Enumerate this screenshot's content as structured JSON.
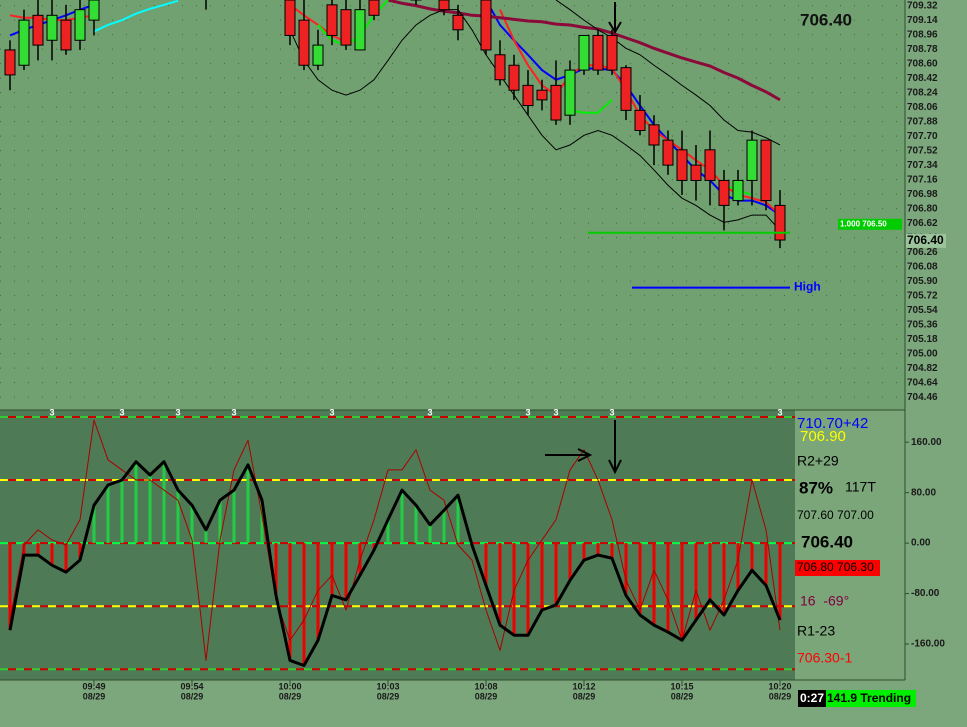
{
  "chart_data": [
    {
      "type": "candlestick",
      "last_price_text": "706.40",
      "current_price": {
        "value": 706.4,
        "label": "706.40"
      },
      "ylim": [
        704.3,
        709.39
      ],
      "yticks": [
        709.32,
        709.14,
        708.96,
        708.78,
        {
          "value": 708.6,
          "label": "708.60"
        },
        708.42,
        708.24,
        708.06,
        707.88,
        {
          "value": 707.7,
          "label": "707.70"
        },
        707.52,
        707.34,
        707.16,
        706.98,
        {
          "value": 706.8,
          "label": "706.80"
        },
        706.62,
        706.44,
        706.26,
        706.08,
        {
          "value": 705.9,
          "label": "705.90"
        },
        705.72,
        705.54,
        705.36,
        705.18,
        {
          "value": 705.0,
          "label": "705.00"
        },
        704.82,
        704.64,
        704.46
      ],
      "grid": true,
      "up_color": "#33dd33",
      "down_color": "#ee2222",
      "open": [
        708.77,
        708.58,
        709.2,
        708.89,
        709.14,
        708.89,
        709.14,
        null,
        null,
        null,
        null,
        null,
        null,
        null,
        709.55,
        null,
        null,
        null,
        null,
        null,
        709.39,
        709.14,
        708.58,
        709.33,
        709.27,
        708.77,
        709.39,
        null,
        null,
        709.45,
        null,
        709.39,
        709.2,
        null,
        709.39,
        708.71,
        708.58,
        708.33,
        708.27,
        708.33,
        707.96,
        708.52,
        708.95,
        708.95,
        708.55,
        708.02,
        707.84,
        707.65,
        707.53,
        707.34,
        707.53,
        707.15,
        706.9,
        707.15,
        707.65,
        706.84
      ],
      "high": [
        708.89,
        709.27,
        709.39,
        709.39,
        709.33,
        709.39,
        709.51,
        null,
        null,
        null,
        null,
        null,
        null,
        null,
        709.65,
        null,
        null,
        null,
        null,
        null,
        709.51,
        709.39,
        709.02,
        709.45,
        709.39,
        709.39,
        709.51,
        null,
        null,
        709.51,
        null,
        709.51,
        709.33,
        null,
        709.45,
        708.89,
        708.71,
        708.52,
        708.4,
        708.64,
        708.64,
        708.95,
        709.02,
        709.02,
        708.58,
        708.21,
        707.96,
        707.77,
        707.77,
        707.59,
        707.77,
        707.28,
        707.28,
        707.77,
        707.65,
        707.03
      ],
      "low": [
        708.27,
        708.52,
        708.64,
        708.64,
        708.71,
        708.77,
        708.95,
        null,
        null,
        null,
        null,
        null,
        null,
        null,
        709.27,
        null,
        null,
        null,
        null,
        null,
        708.83,
        708.52,
        708.52,
        708.83,
        708.77,
        708.77,
        709.14,
        null,
        null,
        709.33,
        null,
        709.2,
        708.89,
        null,
        708.71,
        708.33,
        708.15,
        707.96,
        708.02,
        707.84,
        707.84,
        708.46,
        708.46,
        708.46,
        707.9,
        707.71,
        707.34,
        707.22,
        706.97,
        706.9,
        706.84,
        706.53,
        706.84,
        706.84,
        706.78,
        706.31
      ],
      "close": [
        708.46,
        709.14,
        708.83,
        709.2,
        708.77,
        709.27,
        709.39,
        null,
        null,
        null,
        null,
        null,
        null,
        null,
        709.45,
        null,
        null,
        null,
        null,
        null,
        708.95,
        708.58,
        708.83,
        708.95,
        708.83,
        709.27,
        709.2,
        null,
        null,
        709.39,
        null,
        709.27,
        709.02,
        null,
        708.77,
        708.4,
        708.27,
        708.08,
        708.15,
        707.9,
        708.52,
        708.95,
        708.52,
        708.52,
        708.02,
        707.77,
        707.59,
        707.34,
        707.15,
        707.15,
        707.15,
        706.84,
        707.15,
        707.65,
        706.9,
        706.41
      ],
      "lines": [
        {
          "color": "#0000ff",
          "values": [
            708.95,
            709.02,
            709.08,
            709.14,
            709.2,
            709.27,
            709.33,
            null,
            null,
            null,
            null,
            null,
            null,
            null,
            null,
            null,
            null,
            null,
            null,
            null,
            null,
            null,
            null,
            null,
            null,
            null,
            null,
            null,
            null,
            null,
            null,
            null,
            null,
            null,
            709.39,
            709.08,
            708.89,
            708.71,
            708.52,
            708.4,
            708.46,
            708.54,
            708.54,
            708.52,
            708.33,
            708.08,
            707.84,
            707.65,
            707.46,
            707.28,
            707.15,
            706.97,
            706.9,
            706.9,
            706.84,
            706.72
          ]
        },
        {
          "color": "#ff2020",
          "values": [
            709.2,
            709.17,
            709.17,
            709.14,
            709.14,
            709.17,
            709.2,
            null,
            null,
            null,
            null,
            null,
            null,
            null,
            null,
            null,
            null,
            null,
            null,
            null,
            709.33,
            709.2,
            709.08,
            708.95,
            708.87,
            null,
            null,
            null,
            null,
            null,
            null,
            null,
            null,
            null,
            null,
            709.27,
            708.89,
            708.58,
            708.33,
            708.21,
            708.46,
            708.58,
            708.58,
            708.54,
            708.27,
            707.96,
            707.77,
            707.65,
            707.53,
            707.4,
            707.28,
            707.09,
            706.97,
            706.93,
            706.88,
            706.72
          ]
        },
        {
          "color": "#8b0a3a",
          "values": [
            null,
            null,
            null,
            null,
            null,
            null,
            null,
            null,
            null,
            null,
            null,
            null,
            null,
            null,
            null,
            null,
            null,
            null,
            null,
            null,
            null,
            null,
            null,
            null,
            null,
            null,
            null,
            709.39,
            709.35,
            709.32,
            709.28,
            709.25,
            709.23,
            709.2,
            709.19,
            709.17,
            709.15,
            709.13,
            709.12,
            709.09,
            709.08,
            709.05,
            709.03,
            708.98,
            708.92,
            708.86,
            708.79,
            708.73,
            708.67,
            708.62,
            708.57,
            708.49,
            708.42,
            708.33,
            708.25,
            708.15
          ]
        },
        {
          "color": "#000000",
          "values": [
            null,
            null,
            null,
            null,
            null,
            null,
            null,
            null,
            null,
            null,
            null,
            null,
            null,
            null,
            null,
            null,
            null,
            null,
            null,
            null,
            null,
            null,
            null,
            null,
            null,
            null,
            null,
            null,
            null,
            null,
            null,
            null,
            null,
            null,
            null,
            null,
            null,
            null,
            null,
            709.39,
            709.27,
            709.14,
            709.02,
            708.92,
            708.79,
            708.71,
            708.58,
            708.46,
            708.33,
            708.21,
            708.08,
            707.9,
            707.77,
            707.75,
            707.68,
            707.59
          ]
        },
        {
          "color": "#000000",
          "values": [
            null,
            null,
            null,
            null,
            null,
            null,
            null,
            null,
            null,
            null,
            null,
            null,
            null,
            null,
            null,
            null,
            null,
            null,
            null,
            null,
            709.02,
            708.64,
            708.4,
            708.27,
            708.21,
            708.27,
            708.4,
            708.64,
            708.89,
            709.08,
            709.2,
            709.27,
            709.27,
            709.02,
            708.71,
            708.46,
            708.21,
            707.96,
            707.71,
            707.53,
            707.59,
            707.71,
            707.77,
            707.71,
            707.59,
            707.46,
            707.28,
            707.09,
            706.93,
            706.84,
            706.72,
            706.63,
            706.66,
            706.72,
            706.72,
            706.53
          ]
        },
        {
          "color": "#00ffff",
          "values": [
            null,
            null,
            null,
            null,
            null,
            null,
            709.0,
            709.08,
            709.14,
            709.22,
            709.28,
            709.33,
            709.38,
            null,
            null,
            null,
            null,
            null,
            null,
            null,
            null,
            null,
            null,
            null,
            null,
            null,
            null,
            null,
            null,
            null,
            null,
            null,
            null,
            null,
            null,
            null,
            null,
            null,
            null,
            null,
            null,
            null,
            null,
            null,
            null,
            null,
            null,
            null,
            null,
            null,
            null,
            null,
            null,
            null,
            null,
            null
          ]
        },
        {
          "color": "#00ee00",
          "values": [
            null,
            null,
            null,
            null,
            null,
            null,
            null,
            null,
            null,
            null,
            null,
            null,
            null,
            null,
            null,
            null,
            null,
            null,
            null,
            null,
            null,
            null,
            709.08,
            708.89,
            708.83,
            708.95,
            709.2,
            709.39,
            null,
            null,
            null,
            null,
            null,
            null,
            null,
            null,
            null,
            null,
            null,
            null,
            708.02,
            707.99,
            707.99,
            708.15,
            null,
            null,
            null,
            null,
            null,
            null,
            null,
            707.09,
            707.03,
            706.97,
            null,
            null
          ]
        }
      ],
      "levels": [
        {
          "value": 706.5,
          "label": "1.000 706.50",
          "color": "#00cc00"
        },
        {
          "value": 705.82,
          "label": "High",
          "color": "#0000ff"
        }
      ]
    },
    {
      "type": "oscillator",
      "ylim": [
        -217,
        211
      ],
      "yticks": [
        {
          "value": 160,
          "label": "160.00"
        },
        {
          "value": 80,
          "label": "80.00"
        },
        {
          "value": 0,
          "label": "0.00"
        },
        {
          "value": -80,
          "label": "-80.00"
        },
        {
          "value": -160,
          "label": "-160.00"
        }
      ],
      "levels": [
        {
          "value": 200,
          "colors": [
            "#33cc33",
            "#cc0000"
          ]
        },
        {
          "value": 100,
          "colors": [
            "#ffff00",
            "#cc0000"
          ]
        },
        {
          "value": 0,
          "colors": [
            "#00ff44",
            "#cc0000"
          ]
        },
        {
          "value": -100,
          "colors": [
            "#ffff00",
            "#cc0000"
          ]
        },
        {
          "value": -200,
          "colors": [
            "#33cc33",
            "#cc0000"
          ]
        }
      ],
      "bar_colors": {
        "positive": "#22cc44",
        "negative": "#ee0000"
      },
      "categories": [
        null,
        null,
        null,
        null,
        null,
        null,
        "09:49",
        null,
        null,
        null,
        null,
        null,
        null,
        "09:54",
        null,
        null,
        null,
        null,
        null,
        null,
        "10:00",
        null,
        null,
        null,
        null,
        null,
        null,
        "10:03",
        null,
        null,
        null,
        null,
        null,
        null,
        "10:08",
        null,
        null,
        null,
        null,
        null,
        null,
        "10:12",
        null,
        null,
        null,
        null,
        null,
        null,
        "10:15",
        null,
        null,
        null,
        null,
        null,
        null,
        "10:20"
      ],
      "dates": [
        null,
        null,
        null,
        null,
        null,
        null,
        "08/29",
        null,
        null,
        null,
        null,
        null,
        null,
        "08/29",
        null,
        null,
        null,
        null,
        null,
        null,
        "08/29",
        null,
        null,
        null,
        null,
        null,
        null,
        "08/29",
        null,
        null,
        null,
        null,
        null,
        null,
        "08/29",
        null,
        null,
        null,
        null,
        null,
        null,
        "08/29",
        null,
        null,
        null,
        null,
        null,
        null,
        "08/29",
        null,
        null,
        null,
        null,
        null,
        null,
        "08/29"
      ],
      "top_marks": [
        null,
        null,
        null,
        "3",
        null,
        null,
        null,
        null,
        "3",
        null,
        null,
        null,
        "3",
        null,
        null,
        null,
        "3",
        null,
        null,
        null,
        null,
        null,
        null,
        "3",
        null,
        null,
        null,
        null,
        null,
        null,
        "3",
        null,
        null,
        null,
        null,
        null,
        null,
        "3",
        null,
        "3",
        null,
        null,
        null,
        "3",
        null,
        null,
        null,
        null,
        null,
        null,
        null,
        null,
        null,
        null,
        null,
        "3"
      ],
      "series": [
        {
          "color": "#000000",
          "histogram": true,
          "values": [
            -138,
            -19,
            -19,
            -35,
            -46,
            -27,
            60,
            92,
            100,
            129,
            108,
            129,
            84,
            60,
            21,
            68,
            84,
            124,
            68,
            -83,
            -186,
            -194,
            -154,
            -83,
            -90,
            -51,
            -11,
            37,
            84,
            60,
            29,
            52,
            76,
            -3,
            -67,
            -130,
            -146,
            -146,
            -106,
            -98,
            -59,
            -27,
            -19,
            -24,
            -83,
            -114,
            -130,
            -141,
            -154,
            -122,
            -90,
            -114,
            -75,
            -43,
            -67,
            -122
          ]
        },
        {
          "color": "#aa0000",
          "values": [
            -122,
            -3,
            21,
            5,
            -3,
            37,
            195,
            132,
            116,
            100,
            100,
            84,
            68,
            5,
            -186,
            5,
            116,
            163,
            44,
            -90,
            -154,
            -122,
            -75,
            -51,
            -106,
            -27,
            37,
            116,
            116,
            148,
            84,
            68,
            -3,
            -27,
            -106,
            -170,
            -75,
            -27,
            5,
            37,
            116,
            148,
            100,
            37,
            -59,
            -106,
            -43,
            -90,
            -154,
            -75,
            -138,
            -90,
            -27,
            100,
            21,
            -138
          ]
        }
      ],
      "side_labels": [
        {
          "text": "710.70+42",
          "color": "#0000ff"
        },
        {
          "text": "706.90",
          "color": "#ffff00"
        },
        {
          "text": "R2+29",
          "color": "#000000"
        },
        {
          "text": "87%",
          "color": "#000000"
        },
        {
          "text": "117T",
          "color": "#000000"
        },
        {
          "text": "707.60 707.00",
          "color": "#000000"
        },
        {
          "text": "706.40",
          "color": "#000000"
        },
        {
          "text": "706.80 706.30",
          "color": "#000000",
          "background": "#ff0000"
        },
        {
          "text": "16  -69°",
          "color": "#800040"
        },
        {
          "text": "R1-23",
          "color": "#000000"
        },
        {
          "text": "706.30-1",
          "color": "#ff0000"
        }
      ],
      "status": {
        "time": "0:27",
        "text": "141.9 Trending"
      }
    }
  ]
}
